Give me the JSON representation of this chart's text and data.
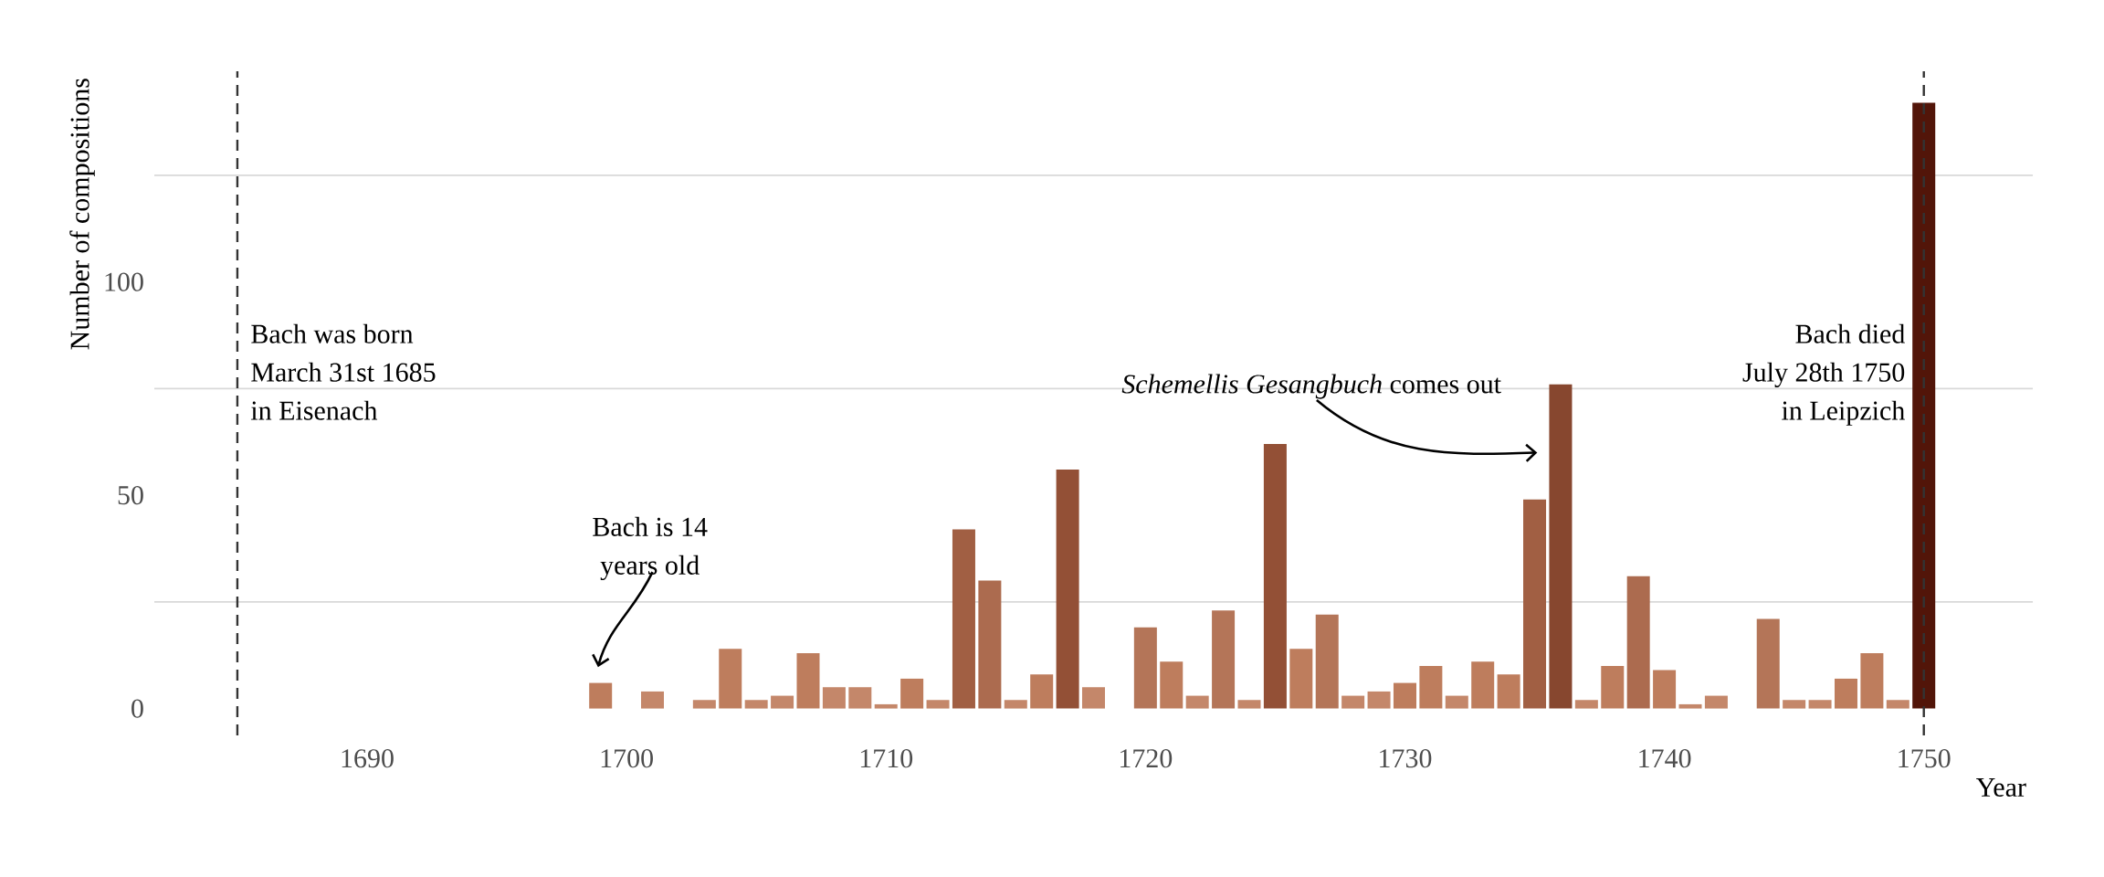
{
  "chart_data": {
    "type": "bar",
    "xlabel": "Year",
    "ylabel": "Number of compositions",
    "x": [
      1699,
      1701,
      1703,
      1704,
      1705,
      1706,
      1707,
      1708,
      1709,
      1710,
      1711,
      1712,
      1713,
      1714,
      1715,
      1716,
      1717,
      1718,
      1720,
      1721,
      1722,
      1723,
      1724,
      1725,
      1726,
      1727,
      1728,
      1729,
      1730,
      1731,
      1732,
      1733,
      1734,
      1735,
      1736,
      1737,
      1738,
      1739,
      1740,
      1741,
      1742,
      1744,
      1745,
      1746,
      1747,
      1748,
      1749,
      1750
    ],
    "values": [
      6,
      4,
      2,
      14,
      2,
      3,
      13,
      5,
      5,
      1,
      7,
      2,
      42,
      30,
      2,
      8,
      56,
      5,
      19,
      11,
      3,
      23,
      2,
      62,
      14,
      22,
      3,
      4,
      6,
      10,
      3,
      11,
      8,
      49,
      76,
      2,
      10,
      31,
      9,
      1,
      3,
      21,
      2,
      2,
      7,
      13,
      2,
      142
    ],
    "colors": [
      "#be7d5d",
      "#c4876a",
      "#c4876a",
      "#be7d5d",
      "#c4876a",
      "#c4876a",
      "#be7d5d",
      "#c4876a",
      "#c4876a",
      "#c4876a",
      "#be7d5d",
      "#c4876a",
      "#a15f43",
      "#ac6b4f",
      "#c4876a",
      "#be7d5d",
      "#935036",
      "#c4876a",
      "#b47558",
      "#be7d5d",
      "#c4876a",
      "#b47558",
      "#c4876a",
      "#935036",
      "#be7d5d",
      "#b47558",
      "#c4876a",
      "#c4876a",
      "#be7d5d",
      "#be7d5d",
      "#c4876a",
      "#be7d5d",
      "#be7d5d",
      "#a15f43",
      "#87472f",
      "#c4876a",
      "#be7d5d",
      "#ac6b4f",
      "#be7d5d",
      "#c4876a",
      "#c4876a",
      "#b47558",
      "#c4876a",
      "#c4876a",
      "#be7d5d",
      "#be7d5d",
      "#c4876a",
      "#521509"
    ],
    "xlim": [
      1681.8,
      1754.2
    ],
    "ylim": [
      -6.3,
      149.4
    ],
    "xticks": [
      1690,
      1700,
      1710,
      1720,
      1730,
      1740,
      1750
    ],
    "yticks": [
      0,
      50,
      100,
      {
        "value": 25,
        "label": null
      },
      {
        "value": 75,
        "label": null
      },
      {
        "value": 125,
        "label": null
      }
    ],
    "grid": "y",
    "ref_lines": [
      {
        "axis": "x",
        "value": 1685,
        "label": "Bach was born March 31st 1685 in Eisenach",
        "color": "#333333",
        "line_style": "dashed"
      },
      {
        "axis": "x",
        "value": 1750,
        "label": "Bach died July 28th 1750 in Leipzich",
        "color": "#333333",
        "line_style": "dashed"
      }
    ],
    "annotations": [
      "Bach is 14 years old",
      "*Schemellis Gesangbuch* comes out"
    ]
  }
}
